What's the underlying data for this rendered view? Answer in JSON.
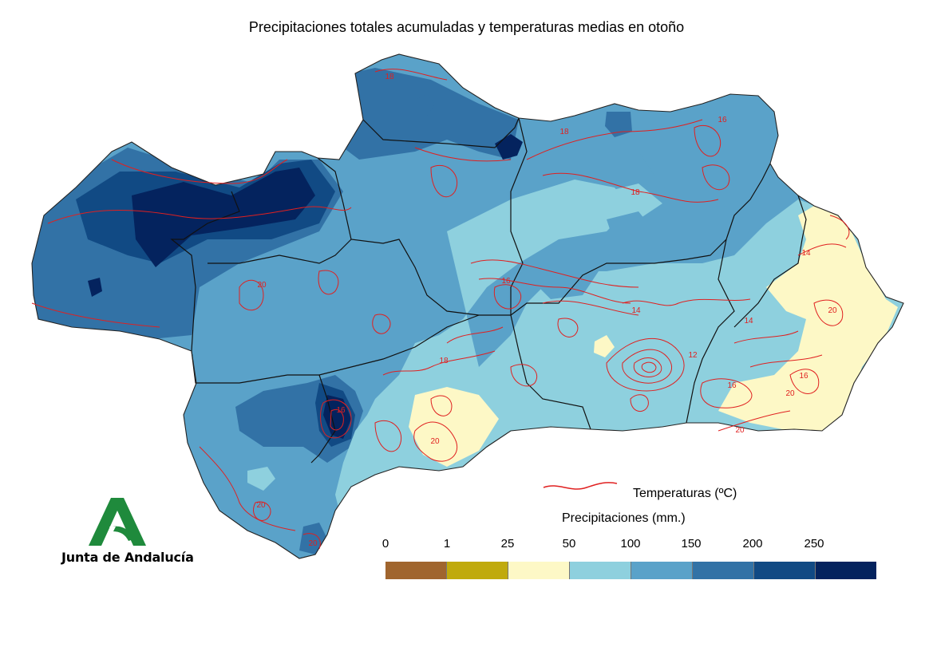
{
  "title": "Precipitaciones totales acumuladas y temperaturas medias en otoño",
  "legend": {
    "temperature_label": "Temperaturas (ºC)",
    "temperature_line_color": "#e02020",
    "precipitation_title": "Precipitaciones (mm.)",
    "ticks": [
      "0",
      "1",
      "25",
      "50",
      "100",
      "150",
      "200",
      "250"
    ],
    "colors": [
      "#a0652e",
      "#c0aa0c",
      "#fdf8c6",
      "#8ed0de",
      "#5aa2c9",
      "#3272a6",
      "#114a84",
      "#04235e"
    ]
  },
  "isotherm_labels": [
    "18",
    "18",
    "18",
    "18",
    "16",
    "16",
    "16",
    "16",
    "16",
    "14",
    "14",
    "14",
    "12",
    "20",
    "20",
    "20",
    "20",
    "20",
    "20",
    "20"
  ],
  "organization": {
    "name": "Junta de Andalucía",
    "logo_color": "#1f8a3c"
  }
}
